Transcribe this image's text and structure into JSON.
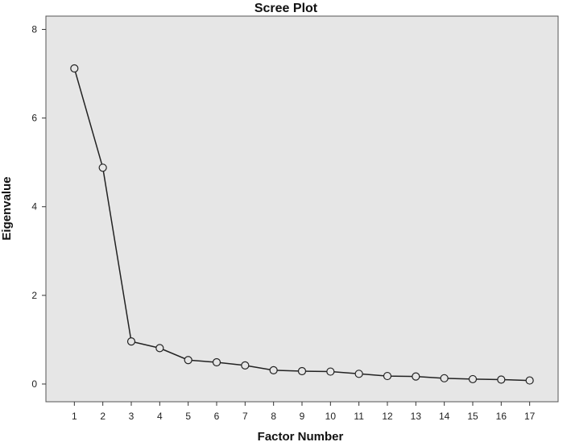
{
  "chart_data": {
    "type": "line",
    "title": "Scree Plot",
    "xlabel": "Factor Number",
    "ylabel": "Eigenvalue",
    "x": [
      1,
      2,
      3,
      4,
      5,
      6,
      7,
      8,
      9,
      10,
      11,
      12,
      13,
      14,
      15,
      16,
      17
    ],
    "series": [
      {
        "values": [
          7.12,
          4.88,
          0.96,
          0.81,
          0.54,
          0.49,
          0.42,
          0.31,
          0.29,
          0.28,
          0.23,
          0.18,
          0.17,
          0.13,
          0.11,
          0.1,
          0.08
        ]
      }
    ],
    "xlim": [
      0,
      18
    ],
    "ylim": [
      -0.4,
      8.3
    ],
    "yticks": [
      0,
      2,
      4,
      6,
      8
    ],
    "xticks": [
      1,
      2,
      3,
      4,
      5,
      6,
      7,
      8,
      9,
      10,
      11,
      12,
      13,
      14,
      15,
      16,
      17
    ],
    "grid": false,
    "legend": "none",
    "colors": {
      "plot_background": "#e6e6e6",
      "line": "#222222",
      "marker_edge": "#222222"
    },
    "marker": "hollow-circle"
  }
}
